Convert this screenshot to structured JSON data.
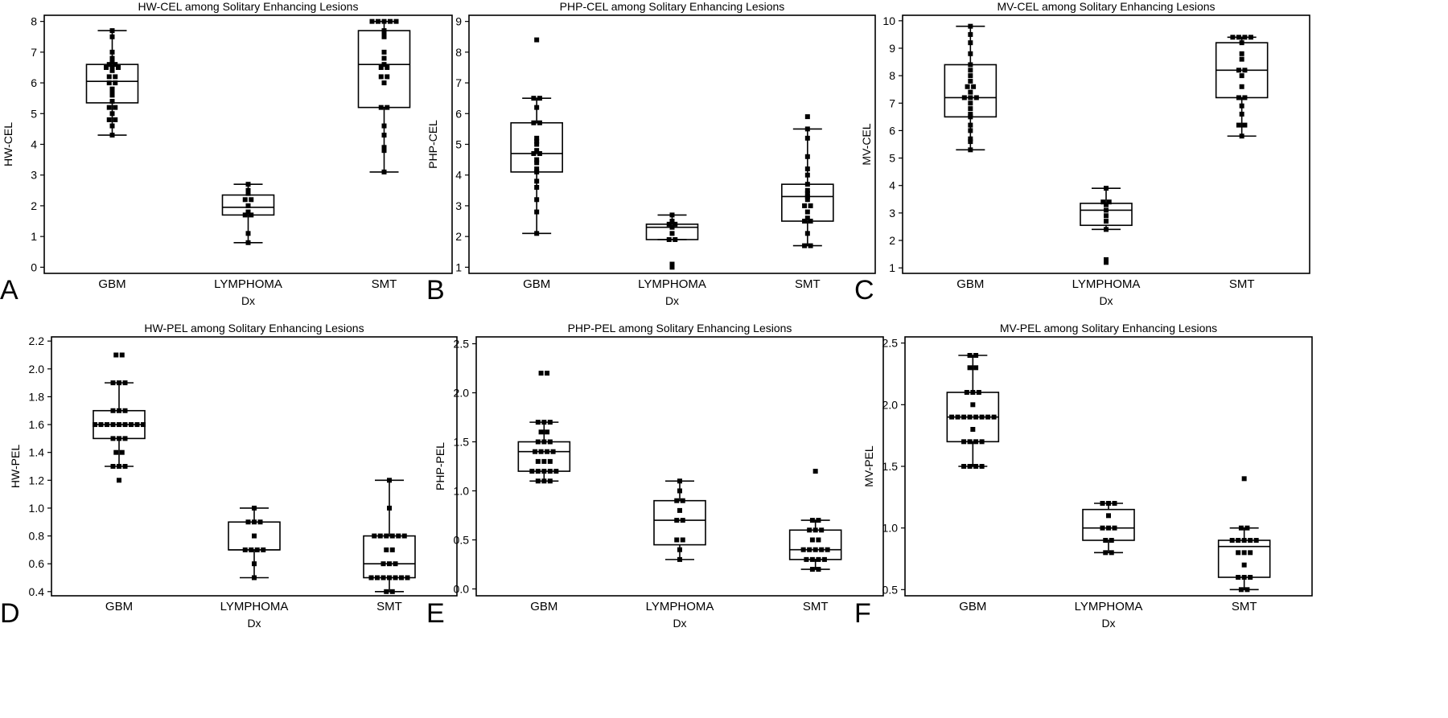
{
  "chart_data": [
    {
      "panel_label": "A",
      "type": "box",
      "title": "HW-CEL among Solitary Enhancing Lesions",
      "xlabel": "Dx",
      "ylabel": "HW-CEL",
      "ylim": [
        -0.2,
        8.2
      ],
      "yticks": [
        "0",
        "1",
        "2",
        "3",
        "4",
        "5",
        "6",
        "7",
        "8"
      ],
      "categories": [
        "GBM",
        "LYMPHOMA",
        "SMT"
      ],
      "boxes": [
        {
          "whisker_low": 4.3,
          "q1": 5.35,
          "median": 6.05,
          "q3": 6.6,
          "whisker_high": 7.7,
          "points": [
            4.3,
            4.6,
            4.8,
            4.8,
            5.0,
            5.2,
            5.2,
            5.4,
            5.6,
            5.7,
            5.8,
            6.0,
            6.0,
            6.2,
            6.2,
            6.4,
            6.5,
            6.5,
            6.5,
            6.6,
            6.6,
            6.7,
            6.8,
            7.0,
            7.5,
            7.7
          ]
        },
        {
          "whisker_low": 0.8,
          "q1": 1.7,
          "median": 1.95,
          "q3": 2.35,
          "whisker_high": 2.7,
          "points": [
            0.8,
            1.1,
            1.7,
            1.7,
            1.8,
            2.0,
            2.2,
            2.2,
            2.4,
            2.5,
            2.7
          ]
        },
        {
          "whisker_low": 3.1,
          "q1": 5.2,
          "median": 6.6,
          "q3": 7.7,
          "whisker_high": 8.0,
          "points": [
            3.1,
            3.8,
            3.9,
            4.3,
            4.6,
            5.2,
            5.2,
            6.0,
            6.2,
            6.2,
            6.5,
            6.5,
            6.6,
            6.8,
            7.0,
            7.5,
            7.6,
            7.7,
            8.0,
            8.0,
            8.0,
            8.0,
            8.0
          ]
        }
      ]
    },
    {
      "panel_label": "B",
      "type": "box",
      "title": "PHP-CEL among Solitary Enhancing Lesions",
      "xlabel": "Dx",
      "ylabel": "PHP-CEL",
      "ylim": [
        0.8,
        9.2
      ],
      "yticks": [
        "1",
        "2",
        "3",
        "4",
        "5",
        "6",
        "7",
        "8",
        "9"
      ],
      "categories": [
        "GBM",
        "LYMPHOMA",
        "SMT"
      ],
      "boxes": [
        {
          "whisker_low": 2.1,
          "q1": 4.1,
          "median": 4.7,
          "q3": 5.7,
          "whisker_high": 6.5,
          "points": [
            2.1,
            2.8,
            3.2,
            3.6,
            3.8,
            4.1,
            4.2,
            4.4,
            4.5,
            4.7,
            4.7,
            4.8,
            5.0,
            5.1,
            5.2,
            5.7,
            5.7,
            6.2,
            6.5,
            6.5,
            8.4
          ]
        },
        {
          "whisker_low": 1.9,
          "q1": 1.9,
          "median": 2.3,
          "q3": 2.4,
          "whisker_high": 2.7,
          "points": [
            1.0,
            1.1,
            1.9,
            1.9,
            2.1,
            2.3,
            2.4,
            2.4,
            2.5,
            2.7
          ]
        },
        {
          "whisker_low": 1.7,
          "q1": 2.5,
          "median": 3.3,
          "q3": 3.7,
          "whisker_high": 5.5,
          "points": [
            1.7,
            1.7,
            2.1,
            2.5,
            2.5,
            2.6,
            2.8,
            3.0,
            3.0,
            3.2,
            3.3,
            3.4,
            3.5,
            3.7,
            4.0,
            4.2,
            4.6,
            5.2,
            5.5,
            5.9
          ]
        }
      ]
    },
    {
      "panel_label": "C",
      "type": "box",
      "title": "MV-CEL among Solitary Enhancing Lesions",
      "xlabel": "Dx",
      "ylabel": "MV-CEL",
      "ylim": [
        0.8,
        10.2
      ],
      "yticks": [
        "1",
        "2",
        "3",
        "4",
        "5",
        "6",
        "7",
        "8",
        "9",
        "10"
      ],
      "categories": [
        "GBM",
        "LYMPHOMA",
        "SMT"
      ],
      "boxes": [
        {
          "whisker_low": 5.3,
          "q1": 6.5,
          "median": 7.2,
          "q3": 8.4,
          "whisker_high": 9.8,
          "points": [
            5.3,
            5.6,
            5.7,
            6.0,
            6.2,
            6.5,
            6.6,
            6.8,
            7.0,
            7.2,
            7.2,
            7.2,
            7.4,
            7.6,
            7.6,
            7.8,
            8.0,
            8.2,
            8.4,
            8.8,
            9.2,
            9.5,
            9.8
          ]
        },
        {
          "whisker_low": 2.4,
          "q1": 2.55,
          "median": 3.1,
          "q3": 3.35,
          "whisker_high": 3.9,
          "points": [
            1.2,
            1.3,
            2.4,
            2.7,
            2.9,
            3.1,
            3.3,
            3.4,
            3.4,
            3.9
          ]
        },
        {
          "whisker_low": 5.8,
          "q1": 7.2,
          "median": 8.2,
          "q3": 9.2,
          "whisker_high": 9.4,
          "points": [
            5.8,
            6.2,
            6.2,
            6.6,
            6.9,
            7.2,
            7.2,
            7.6,
            8.0,
            8.2,
            8.2,
            8.6,
            8.8,
            9.2,
            9.4,
            9.4,
            9.4,
            9.4
          ]
        }
      ]
    },
    {
      "panel_label": "D",
      "type": "box",
      "title": "HW-PEL among Solitary Enhancing Lesions",
      "xlabel": "Dx",
      "ylabel": "HW-PEL",
      "ylim": [
        0.37,
        2.23
      ],
      "yticks": [
        "0.4",
        "0.6",
        "0.8",
        "1.0",
        "1.2",
        "1.4",
        "1.6",
        "1.8",
        "2.0",
        "2.2"
      ],
      "categories": [
        "GBM",
        "LYMPHOMA",
        "SMT"
      ],
      "boxes": [
        {
          "whisker_low": 1.3,
          "q1": 1.5,
          "median": 1.6,
          "q3": 1.7,
          "whisker_high": 1.9,
          "points": [
            1.2,
            1.3,
            1.3,
            1.3,
            1.4,
            1.4,
            1.5,
            1.5,
            1.5,
            1.6,
            1.6,
            1.6,
            1.6,
            1.6,
            1.6,
            1.6,
            1.6,
            1.6,
            1.7,
            1.7,
            1.7,
            1.9,
            1.9,
            1.9,
            2.1,
            2.1
          ]
        },
        {
          "whisker_low": 0.5,
          "q1": 0.7,
          "median": 0.7,
          "q3": 0.9,
          "whisker_high": 1.0,
          "points": [
            0.5,
            0.6,
            0.7,
            0.7,
            0.7,
            0.7,
            0.8,
            0.9,
            0.9,
            0.9,
            1.0
          ]
        },
        {
          "whisker_low": 0.4,
          "q1": 0.5,
          "median": 0.6,
          "q3": 0.8,
          "whisker_high": 1.2,
          "points": [
            0.4,
            0.4,
            0.5,
            0.5,
            0.5,
            0.5,
            0.5,
            0.5,
            0.5,
            0.6,
            0.6,
            0.6,
            0.7,
            0.7,
            0.8,
            0.8,
            0.8,
            0.8,
            0.8,
            0.8,
            1.0,
            1.2
          ]
        }
      ]
    },
    {
      "panel_label": "E",
      "type": "box",
      "title": "PHP-PEL among Solitary Enhancing Lesions",
      "xlabel": "Dx",
      "ylabel": "PHP-PEL",
      "ylim": [
        -0.07,
        2.57
      ],
      "yticks": [
        "0.0",
        "0.5",
        "1.0",
        "1.5",
        "2.0",
        "2.5"
      ],
      "categories": [
        "GBM",
        "LYMPHOMA",
        "SMT"
      ],
      "boxes": [
        {
          "whisker_low": 1.1,
          "q1": 1.2,
          "median": 1.4,
          "q3": 1.5,
          "whisker_high": 1.7,
          "points": [
            1.1,
            1.1,
            1.1,
            1.2,
            1.2,
            1.2,
            1.2,
            1.2,
            1.3,
            1.3,
            1.3,
            1.4,
            1.4,
            1.4,
            1.4,
            1.5,
            1.5,
            1.5,
            1.6,
            1.6,
            1.7,
            1.7,
            1.7,
            2.2,
            2.2
          ]
        },
        {
          "whisker_low": 0.3,
          "q1": 0.45,
          "median": 0.7,
          "q3": 0.9,
          "whisker_high": 1.1,
          "points": [
            0.3,
            0.4,
            0.5,
            0.5,
            0.7,
            0.7,
            0.8,
            0.9,
            0.9,
            1.0,
            1.1
          ]
        },
        {
          "whisker_low": 0.2,
          "q1": 0.3,
          "median": 0.4,
          "q3": 0.6,
          "whisker_high": 0.7,
          "points": [
            0.2,
            0.2,
            0.3,
            0.3,
            0.3,
            0.3,
            0.4,
            0.4,
            0.4,
            0.4,
            0.4,
            0.5,
            0.5,
            0.6,
            0.6,
            0.6,
            0.7,
            0.7,
            1.2
          ]
        }
      ]
    },
    {
      "panel_label": "F",
      "type": "box",
      "title": "MV-PEL among Solitary Enhancing Lesions",
      "xlabel": "Dx",
      "ylabel": "MV-PEL",
      "ylim": [
        0.45,
        2.55
      ],
      "yticks": [
        "0.5",
        "1.0",
        "1.5",
        "2.0",
        "2.5"
      ],
      "categories": [
        "GBM",
        "LYMPHOMA",
        "SMT"
      ],
      "boxes": [
        {
          "whisker_low": 1.5,
          "q1": 1.7,
          "median": 1.9,
          "q3": 2.1,
          "whisker_high": 2.4,
          "points": [
            1.5,
            1.5,
            1.5,
            1.5,
            1.7,
            1.7,
            1.7,
            1.7,
            1.8,
            1.9,
            1.9,
            1.9,
            1.9,
            1.9,
            1.9,
            1.9,
            1.9,
            2.0,
            2.1,
            2.1,
            2.1,
            2.3,
            2.3,
            2.4,
            2.4
          ]
        },
        {
          "whisker_low": 0.8,
          "q1": 0.9,
          "median": 1.0,
          "q3": 1.15,
          "whisker_high": 1.2,
          "points": [
            0.8,
            0.8,
            0.9,
            0.9,
            1.0,
            1.0,
            1.0,
            1.1,
            1.2,
            1.2,
            1.2
          ]
        },
        {
          "whisker_low": 0.5,
          "q1": 0.6,
          "median": 0.85,
          "q3": 0.9,
          "whisker_high": 1.0,
          "points": [
            0.5,
            0.5,
            0.6,
            0.6,
            0.6,
            0.7,
            0.8,
            0.8,
            0.8,
            0.9,
            0.9,
            0.9,
            0.9,
            0.9,
            1.0,
            1.0,
            1.4
          ]
        }
      ]
    }
  ]
}
